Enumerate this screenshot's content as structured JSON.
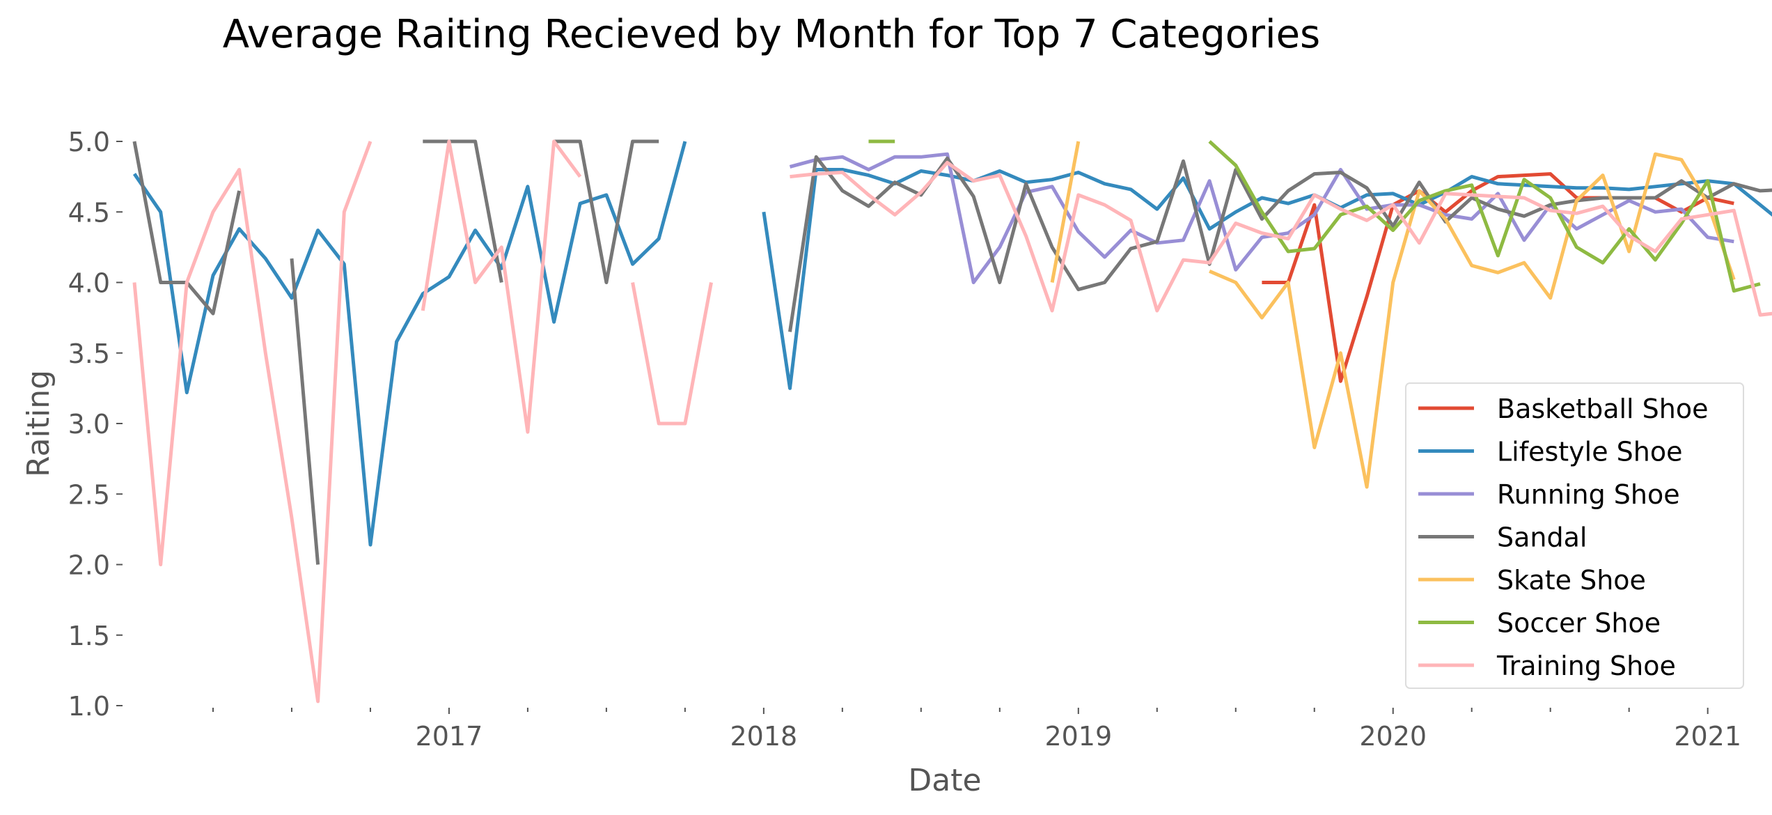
{
  "chart_data": {
    "type": "line",
    "title": "Average Raiting Recieved by Month for Top 7 Categories",
    "xlabel": "Date",
    "ylabel": "Raiting",
    "x_start": "2016-01",
    "x_end": "2021-03",
    "xlim": [
      "2016-01",
      "2021-03"
    ],
    "ylim": [
      1.0,
      5.0
    ],
    "xticks": [
      {
        "date": "2017-01",
        "label": "2017"
      },
      {
        "date": "2018-01",
        "label": "2018"
      },
      {
        "date": "2019-01",
        "label": "2019"
      },
      {
        "date": "2020-01",
        "label": "2020"
      },
      {
        "date": "2021-01",
        "label": "2021"
      }
    ],
    "yticks": [
      "1.0",
      "1.5",
      "2.0",
      "2.5",
      "3.0",
      "3.5",
      "4.0",
      "4.5",
      "5.0"
    ],
    "grid": false,
    "legend_position": "lower-right",
    "series": [
      {
        "name": "Basketball Shoe",
        "color": "#E24A33",
        "start": "2019-08",
        "values": [
          4.0,
          4.0,
          4.55,
          3.3,
          3.9,
          4.55,
          4.65,
          4.5,
          4.65,
          4.75,
          4.76,
          4.77,
          4.6,
          4.6,
          4.6,
          4.6,
          4.5,
          4.6,
          4.56
        ]
      },
      {
        "name": "Lifestyle Shoe",
        "color": "#348ABD",
        "start": "2016-01",
        "values": [
          4.77,
          4.5,
          3.22,
          4.05,
          4.38,
          4.17,
          3.89,
          4.37,
          4.13,
          2.14,
          3.58,
          3.92,
          4.04,
          4.37,
          4.1,
          4.68,
          3.72,
          4.56,
          4.62,
          4.13,
          4.31,
          5.0,
          null,
          null,
          4.5,
          3.25,
          4.8,
          4.8,
          4.76,
          4.7,
          4.79,
          4.76,
          4.72,
          4.79,
          4.71,
          4.73,
          4.78,
          4.7,
          4.66,
          4.52,
          4.74,
          4.38,
          4.5,
          4.6,
          4.56,
          4.62,
          4.53,
          4.62,
          4.63,
          4.55,
          4.64,
          4.75,
          4.7,
          4.69,
          4.68,
          4.67,
          4.67,
          4.66,
          4.68,
          4.7,
          4.72,
          4.7,
          4.55,
          4.4
        ]
      },
      {
        "name": "Running Shoe",
        "color": "#988ED5",
        "start": "2018-02",
        "values": [
          4.82,
          4.87,
          4.89,
          4.8,
          4.89,
          4.89,
          4.91,
          4.0,
          4.25,
          4.64,
          4.68,
          4.36,
          4.18,
          4.37,
          4.28,
          4.3,
          4.72,
          4.09,
          4.32,
          4.35,
          4.48,
          4.8,
          4.52,
          4.55,
          4.55,
          4.48,
          4.45,
          4.63,
          4.3,
          4.55,
          4.38,
          4.48,
          4.58,
          4.5,
          4.52,
          4.32,
          4.29
        ]
      },
      {
        "name": "Sandal",
        "color": "#777777",
        "start": "2016-01",
        "values": [
          5.0,
          4.0,
          4.0,
          3.78,
          4.65,
          null,
          4.17,
          2.0,
          null,
          null,
          null,
          5.0,
          5.0,
          5.0,
          4.0,
          null,
          5.0,
          5.0,
          4.0,
          5.0,
          5.0,
          null,
          null,
          null,
          null,
          3.65,
          4.89,
          4.65,
          4.54,
          4.71,
          4.62,
          4.88,
          4.61,
          4.0,
          4.7,
          4.25,
          3.95,
          4.0,
          4.24,
          4.29,
          4.86,
          4.13,
          4.8,
          4.45,
          4.65,
          4.77,
          4.78,
          4.67,
          4.4,
          4.71,
          4.43,
          4.6,
          4.52,
          4.47,
          4.55,
          4.58,
          4.6,
          4.6,
          4.6,
          4.72,
          4.6,
          4.7,
          4.65,
          4.66
        ]
      },
      {
        "name": "Skate Shoe",
        "color": "#FBC15E",
        "start": "2018-12",
        "values": [
          4.0,
          5.0,
          null,
          null,
          null,
          null,
          4.08,
          4.0,
          3.75,
          4.0,
          2.83,
          3.5,
          2.55,
          4.0,
          4.65,
          4.45,
          4.12,
          4.07,
          4.14,
          3.89,
          4.58,
          4.76,
          4.22,
          4.91,
          4.87,
          4.56,
          4.02
        ]
      },
      {
        "name": "Soccer Shoe",
        "color": "#8EBA42",
        "start": "2018-05",
        "values": [
          5.0,
          5.0,
          null,
          null,
          null,
          null,
          null,
          null,
          null,
          null,
          null,
          null,
          null,
          5.0,
          4.83,
          4.5,
          4.22,
          4.24,
          4.48,
          4.54,
          4.37,
          4.58,
          4.65,
          4.69,
          4.19,
          4.73,
          4.6,
          4.25,
          4.14,
          4.38,
          4.16,
          4.42,
          4.72,
          3.94,
          3.99
        ]
      },
      {
        "name": "Training Shoe",
        "color": "#FFB5B8",
        "start": "2016-01",
        "values": [
          4.0,
          2.0,
          4.0,
          4.5,
          4.8,
          3.5,
          2.33,
          1.03,
          4.5,
          5.0,
          null,
          3.8,
          5.0,
          4.0,
          4.25,
          2.94,
          5.0,
          4.75,
          null,
          4.0,
          3.0,
          3.0,
          4.0,
          null,
          null,
          4.75,
          4.77,
          4.78,
          4.62,
          4.48,
          4.64,
          4.85,
          4.72,
          4.76,
          4.33,
          3.8,
          4.62,
          4.55,
          4.44,
          3.8,
          4.16,
          4.14,
          4.42,
          4.35,
          4.31,
          4.62,
          4.52,
          4.44,
          4.55,
          4.28,
          4.63,
          4.62,
          4.61,
          4.6,
          4.51,
          4.49,
          4.54,
          4.33,
          4.22,
          4.45,
          4.48,
          4.51,
          3.77,
          3.79
        ]
      }
    ]
  }
}
